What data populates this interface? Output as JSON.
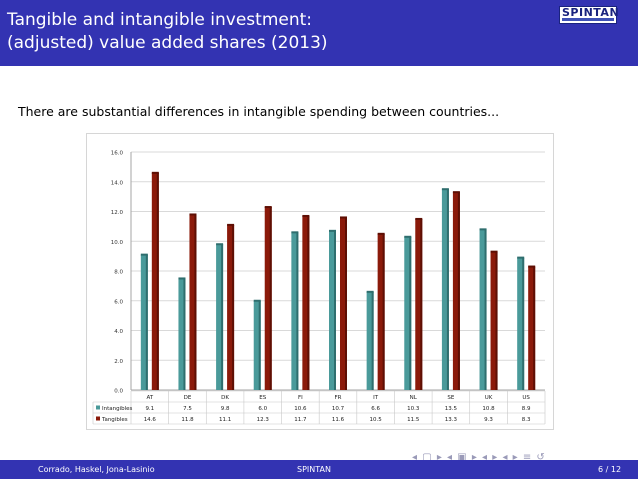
{
  "header": {
    "title_line1": "Tangible and intangible investment:",
    "title_line2": "(adjusted) value added shares (2013)",
    "logo_text": "SPINTAN"
  },
  "intro_text": "There are substantial differences in intangible spending between countries...",
  "footer": {
    "authors": "Corrado, Haskel, Jona-Lasinio",
    "project": "SPINTAN",
    "page": "6 / 12"
  },
  "nav_glyphs": "◂ ▢ ▸ ◂ ▣ ▸ ◂ ▸ ◂ ▸ ≡ ↺",
  "colors": {
    "intangibles": "#4a9a9a",
    "tangibles": "#8b1a0a",
    "header": "#3333b2"
  },
  "chart_data": {
    "type": "bar",
    "title": "",
    "xlabel": "",
    "ylabel": "",
    "categories": [
      "AT",
      "DE",
      "DK",
      "ES",
      "FI",
      "FR",
      "IT",
      "NL",
      "SE",
      "UK",
      "US"
    ],
    "series": [
      {
        "name": "Intangibles",
        "values": [
          9.1,
          7.5,
          9.8,
          6.0,
          10.6,
          10.7,
          6.6,
          10.3,
          13.5,
          10.8,
          8.9
        ]
      },
      {
        "name": "Tangibles",
        "values": [
          14.6,
          11.8,
          11.1,
          12.3,
          11.7,
          11.6,
          10.5,
          11.5,
          13.3,
          9.3,
          8.3
        ]
      }
    ],
    "ylim": [
      0,
      16
    ],
    "yticks": [
      "0.0",
      "2.0",
      "4.0",
      "6.0",
      "8.0",
      "10.0",
      "12.0",
      "14.0",
      "16.0"
    ],
    "grid": true,
    "legend": "data-table"
  }
}
